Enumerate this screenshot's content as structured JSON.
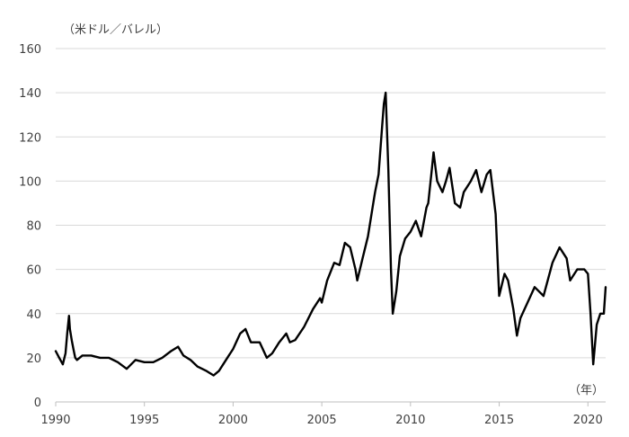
{
  "chart_data": {
    "type": "line",
    "title": "",
    "ylabel": "（米ドル／バレル）",
    "xlabel": "（年）",
    "xlim": [
      1990,
      2021
    ],
    "ylim": [
      0,
      160
    ],
    "x_ticks": [
      1990,
      1995,
      2000,
      2005,
      2010,
      2015,
      2020
    ],
    "y_ticks": [
      0,
      20,
      40,
      60,
      80,
      100,
      120,
      140,
      160
    ],
    "x_tick_labels": [
      "1990",
      "1995",
      "2000",
      "2005",
      "2010",
      "2015",
      "2020"
    ],
    "y_tick_labels": [
      "0",
      "20",
      "40",
      "60",
      "80",
      "100",
      "120",
      "140",
      "160"
    ],
    "grid": "horizontal",
    "line_color": "#000000",
    "grid_color": "#d9d9d9",
    "series": [
      {
        "x": [
          1990.0,
          1990.2,
          1990.4,
          1990.55,
          1990.65,
          1990.75,
          1990.8,
          1990.9,
          1991.0,
          1991.1,
          1991.2,
          1991.5,
          1992.0,
          1992.5,
          1993.0,
          1993.5,
          1994.0,
          1994.5,
          1995.0,
          1995.5,
          1996.0,
          1996.5,
          1996.9,
          1997.2,
          1997.6,
          1998.0,
          1998.5,
          1998.9,
          1999.2,
          1999.6,
          2000.0,
          2000.4,
          2000.7,
          2001.0,
          2001.5,
          2001.9,
          2002.2,
          2002.6,
          2003.0,
          2003.2,
          2003.5,
          2004.0,
          2004.5,
          2004.9,
          2005.0,
          2005.3,
          2005.7,
          2006.0,
          2006.3,
          2006.6,
          2006.9,
          2007.0,
          2007.3,
          2007.6,
          2007.9,
          2008.0,
          2008.2,
          2008.4,
          2008.5,
          2008.6,
          2008.75,
          2008.9,
          2009.0,
          2009.2,
          2009.4,
          2009.7,
          2010.0,
          2010.3,
          2010.6,
          2010.9,
          2011.0,
          2011.2,
          2011.3,
          2011.5,
          2011.8,
          2012.0,
          2012.2,
          2012.5,
          2012.8,
          2013.0,
          2013.4,
          2013.7,
          2014.0,
          2014.3,
          2014.5,
          2014.8,
          2015.0,
          2015.3,
          2015.5,
          2015.8,
          2016.0,
          2016.2,
          2016.6,
          2017.0,
          2017.5,
          2018.0,
          2018.4,
          2018.8,
          2019.0,
          2019.4,
          2019.8,
          2020.0,
          2020.15,
          2020.3,
          2020.5,
          2020.7,
          2020.9,
          2021.0
        ],
        "values": [
          23,
          20,
          17,
          22,
          31,
          39,
          33,
          28,
          24,
          20,
          19,
          21,
          21,
          20,
          20,
          18,
          15,
          19,
          18,
          18,
          20,
          23,
          25,
          21,
          19,
          16,
          14,
          12,
          14,
          19,
          24,
          31,
          33,
          27,
          27,
          20,
          22,
          27,
          31,
          27,
          28,
          34,
          42,
          47,
          45,
          55,
          63,
          62,
          72,
          70,
          60,
          55,
          65,
          75,
          90,
          95,
          103,
          125,
          135,
          140,
          105,
          60,
          40,
          50,
          66,
          74,
          77,
          82,
          75,
          88,
          90,
          105,
          113,
          100,
          95,
          100,
          106,
          90,
          88,
          95,
          100,
          105,
          95,
          103,
          105,
          85,
          48,
          58,
          55,
          42,
          30,
          38,
          45,
          52,
          48,
          63,
          70,
          65,
          55,
          60,
          60,
          58,
          40,
          17,
          35,
          40,
          40,
          52
        ]
      }
    ]
  }
}
